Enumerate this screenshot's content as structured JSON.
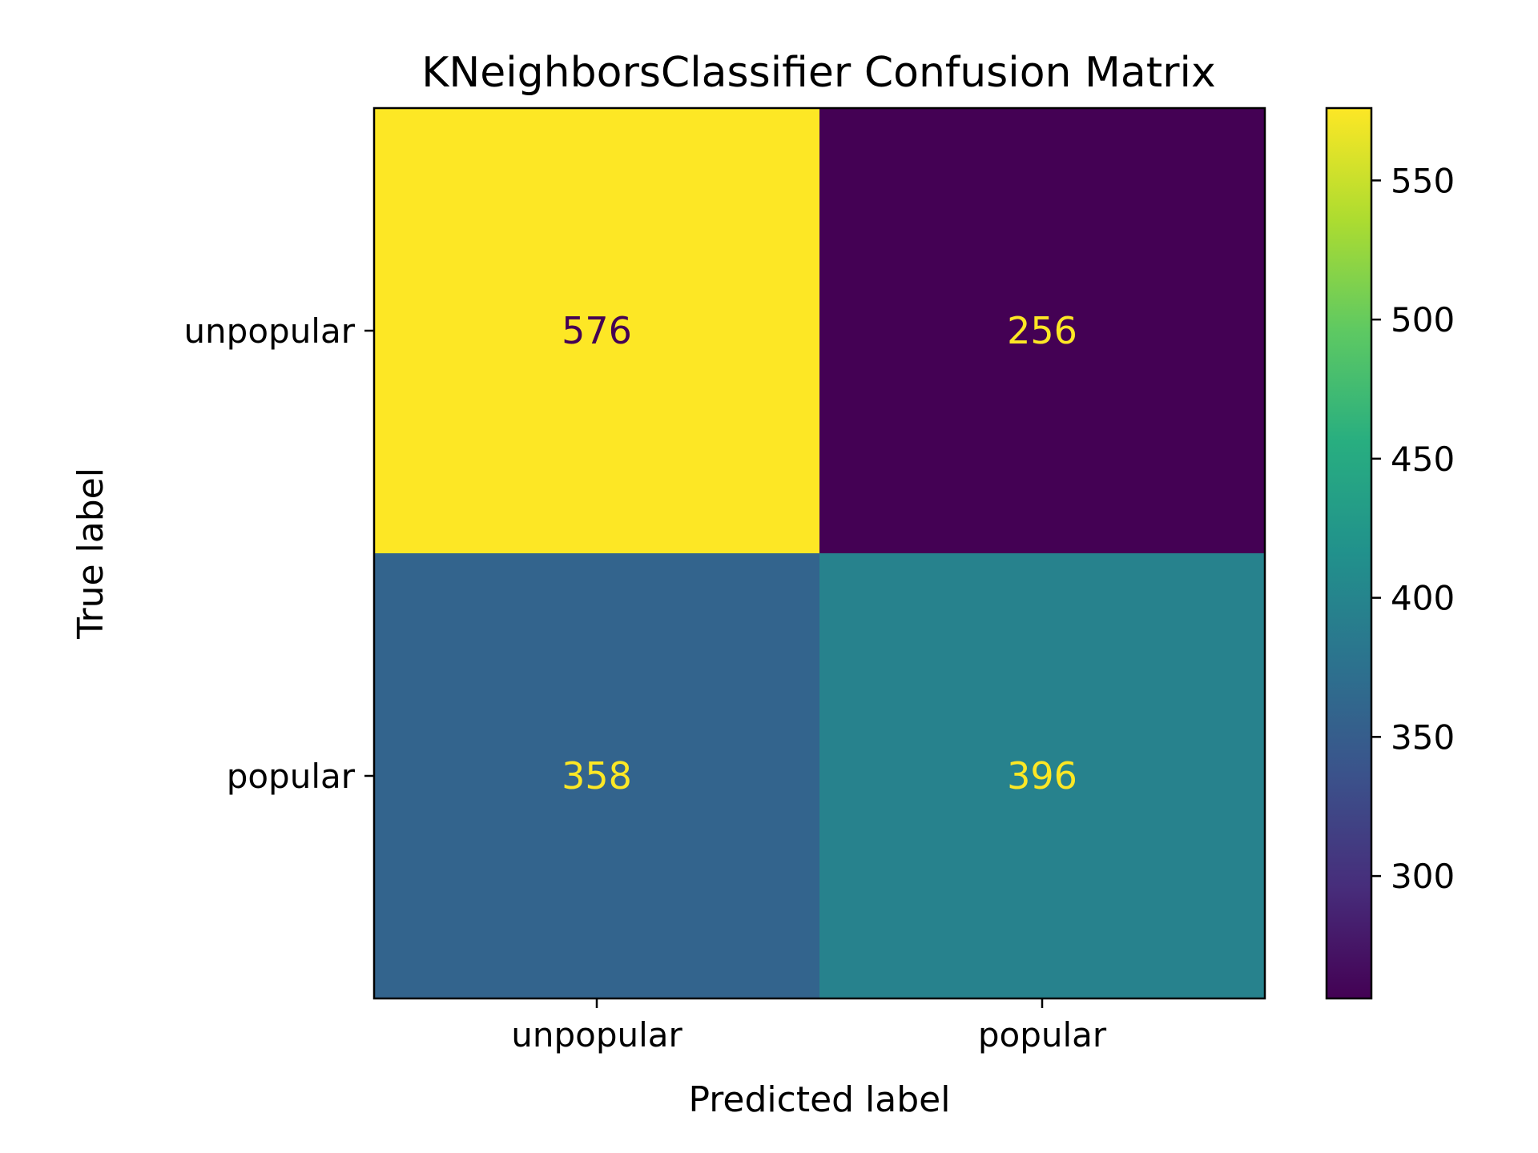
{
  "chart_data": {
    "type": "heatmap",
    "title": "KNeighborsClassifier Confusion Matrix",
    "xlabel": "Predicted label",
    "ylabel": "True label",
    "x_categories": [
      "unpopular",
      "popular"
    ],
    "y_categories": [
      "unpopular",
      "popular"
    ],
    "values": [
      [
        576,
        256
      ],
      [
        358,
        396
      ]
    ],
    "colormap": "viridis",
    "colorbar": {
      "min": 256,
      "max": 576,
      "ticks": [
        300,
        350,
        400,
        450,
        500,
        550
      ]
    },
    "grid": false
  },
  "colors": {
    "text_on_dark": "#fde725",
    "text_on_light": "#440154",
    "frame": "#000000"
  }
}
